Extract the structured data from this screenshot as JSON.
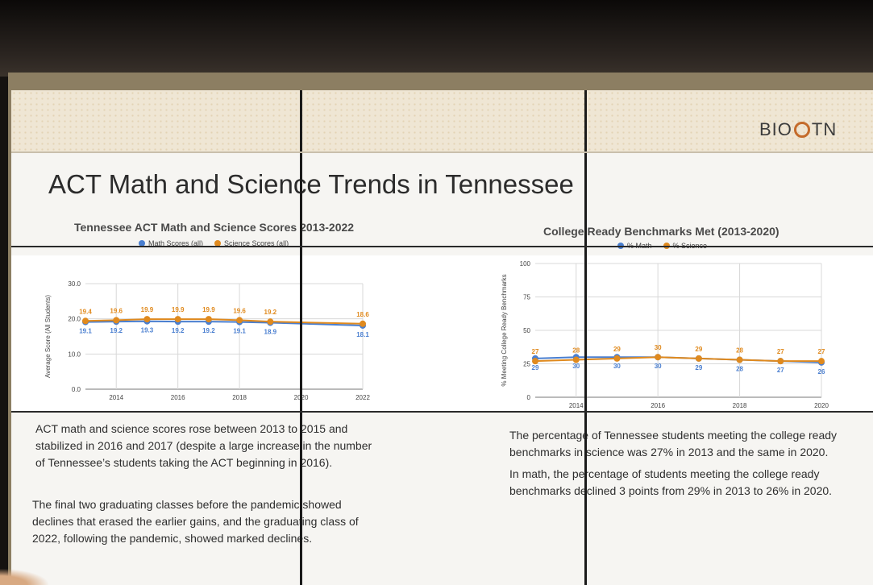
{
  "logo": {
    "text_left": "BIO",
    "text_right": "TN"
  },
  "slide_title": "ACT Math and Science Trends in Tennessee",
  "colors": {
    "math": "#4a7fd0",
    "science": "#e08a1e"
  },
  "chart_data": [
    {
      "type": "line",
      "title": "Tennessee ACT Math and Science Scores 2013-2022",
      "ylabel": "Average Score (All Students)",
      "xlabel": "",
      "legend_position": "top",
      "x": [
        2013,
        2014,
        2015,
        2016,
        2017,
        2018,
        2019,
        2022
      ],
      "x_ticks": [
        "2014",
        "2016",
        "2018",
        "2020",
        "2022"
      ],
      "y_ticks": [
        "0.0",
        "10.0",
        "20.0",
        "30.0"
      ],
      "ylim": [
        0,
        30
      ],
      "series": [
        {
          "name": "Math Scores (all)",
          "values": [
            19.1,
            19.2,
            19.3,
            19.2,
            19.2,
            19.1,
            18.9,
            18.1
          ],
          "labels": [
            "19.1",
            "19.2",
            "19.3",
            "19.2",
            "19.2",
            "19.1",
            "18.9",
            "18.1"
          ]
        },
        {
          "name": "Science Scores (all)",
          "values": [
            19.4,
            19.6,
            19.9,
            19.9,
            19.9,
            19.6,
            19.2,
            18.6
          ],
          "labels": [
            "19.4",
            "19.6",
            "19.9",
            "19.9",
            "19.9",
            "19.6",
            "19.2",
            "18.6"
          ]
        }
      ]
    },
    {
      "type": "line",
      "title": "College Ready Benchmarks Met (2013-2020)",
      "ylabel": "% Meeting College Ready Benchmarks",
      "xlabel": "",
      "legend_position": "top",
      "x": [
        2013,
        2014,
        2015,
        2016,
        2017,
        2018,
        2019,
        2020
      ],
      "x_ticks": [
        "2014",
        "2016",
        "2018",
        "2020"
      ],
      "y_ticks": [
        "0",
        "25",
        "50",
        "75",
        "100"
      ],
      "ylim": [
        0,
        100
      ],
      "series": [
        {
          "name": "% Math",
          "values": [
            29,
            30,
            30,
            30,
            29,
            28,
            27,
            26
          ],
          "labels": [
            "29",
            "30",
            "30",
            "30",
            "29",
            "28",
            "27",
            "26"
          ]
        },
        {
          "name": "% Science",
          "values": [
            27,
            28,
            29,
            30,
            29,
            28,
            27,
            27
          ],
          "labels": [
            "27",
            "28",
            "29",
            "30",
            "29",
            "28",
            "27",
            "27"
          ]
        }
      ]
    }
  ],
  "left_text": {
    "p1": "ACT math and science scores rose between 2013 to 2015 and stabilized in 2016 and 2017 (despite a large increase in the number of Tennessee’s students taking the ACT beginning in 2016).",
    "p2": "The final two graduating classes before the pandemic showed declines that erased the earlier gains, and the graduating class of 2022, following the pandemic, showed marked declines."
  },
  "right_text": {
    "p1": "The percentage of Tennessee students meeting the college ready benchmarks in science was 27% in 2013 and the same in 2020.",
    "p2": "In math, the percentage of students meeting the college ready benchmarks declined 3 points from 29% in 2013 to 26% in 2020."
  }
}
